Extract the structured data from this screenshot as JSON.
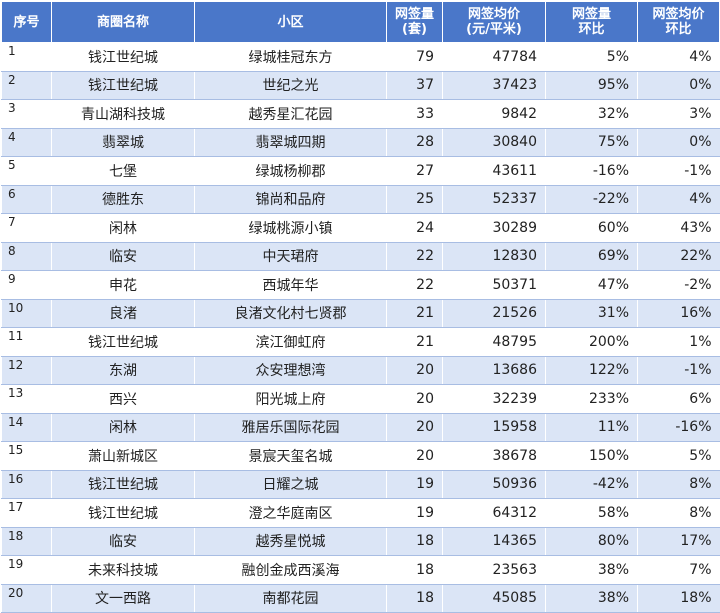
{
  "headers": {
    "index": "序号",
    "area": "商圈名称",
    "community": "小区",
    "deals": [
      "网签量",
      "(套)"
    ],
    "price": [
      "网签均价",
      "(元/平米)"
    ],
    "deals_mom": [
      "网签量",
      "环比"
    ],
    "price_mom": [
      "网签均价",
      "环比"
    ]
  },
  "rows": [
    {
      "index": "1",
      "area": "钱江世纪城",
      "community": "绿城桂冠东方",
      "deals": "79",
      "price": "47784",
      "deals_mom": "5%",
      "price_mom": "4%"
    },
    {
      "index": "2",
      "area": "钱江世纪城",
      "community": "世纪之光",
      "deals": "37",
      "price": "37423",
      "deals_mom": "95%",
      "price_mom": "0%"
    },
    {
      "index": "3",
      "area": "青山湖科技城",
      "community": "越秀星汇花园",
      "deals": "33",
      "price": "9842",
      "deals_mom": "32%",
      "price_mom": "3%"
    },
    {
      "index": "4",
      "area": "翡翠城",
      "community": "翡翠城四期",
      "deals": "28",
      "price": "30840",
      "deals_mom": "75%",
      "price_mom": "0%"
    },
    {
      "index": "5",
      "area": "七堡",
      "community": "绿城杨柳郡",
      "deals": "27",
      "price": "43611",
      "deals_mom": "-16%",
      "price_mom": "-1%"
    },
    {
      "index": "6",
      "area": "德胜东",
      "community": "锦尚和品府",
      "deals": "25",
      "price": "52337",
      "deals_mom": "-22%",
      "price_mom": "4%"
    },
    {
      "index": "7",
      "area": "闲林",
      "community": "绿城桃源小镇",
      "deals": "24",
      "price": "30289",
      "deals_mom": "60%",
      "price_mom": "43%"
    },
    {
      "index": "8",
      "area": "临安",
      "community": "中天珺府",
      "deals": "22",
      "price": "12830",
      "deals_mom": "69%",
      "price_mom": "22%"
    },
    {
      "index": "9",
      "area": "申花",
      "community": "西城年华",
      "deals": "22",
      "price": "50371",
      "deals_mom": "47%",
      "price_mom": "-2%"
    },
    {
      "index": "10",
      "area": "良渚",
      "community": "良渚文化村七贤郡",
      "deals": "21",
      "price": "21526",
      "deals_mom": "31%",
      "price_mom": "16%"
    },
    {
      "index": "11",
      "area": "钱江世纪城",
      "community": "滨江御虹府",
      "deals": "21",
      "price": "48795",
      "deals_mom": "200%",
      "price_mom": "1%"
    },
    {
      "index": "12",
      "area": "东湖",
      "community": "众安理想湾",
      "deals": "20",
      "price": "13686",
      "deals_mom": "122%",
      "price_mom": "-1%"
    },
    {
      "index": "13",
      "area": "西兴",
      "community": "阳光城上府",
      "deals": "20",
      "price": "32239",
      "deals_mom": "233%",
      "price_mom": "6%"
    },
    {
      "index": "14",
      "area": "闲林",
      "community": "雅居乐国际花园",
      "deals": "20",
      "price": "15958",
      "deals_mom": "11%",
      "price_mom": "-16%"
    },
    {
      "index": "15",
      "area": "萧山新城区",
      "community": "景宸天玺名城",
      "deals": "20",
      "price": "38678",
      "deals_mom": "150%",
      "price_mom": "5%"
    },
    {
      "index": "16",
      "area": "钱江世纪城",
      "community": "日耀之城",
      "deals": "19",
      "price": "50936",
      "deals_mom": "-42%",
      "price_mom": "8%"
    },
    {
      "index": "17",
      "area": "钱江世纪城",
      "community": "澄之华庭南区",
      "deals": "19",
      "price": "64312",
      "deals_mom": "58%",
      "price_mom": "8%"
    },
    {
      "index": "18",
      "area": "临安",
      "community": "越秀星悦城",
      "deals": "18",
      "price": "14365",
      "deals_mom": "80%",
      "price_mom": "17%"
    },
    {
      "index": "19",
      "area": "未来科技城",
      "community": "融创金成西溪海",
      "deals": "18",
      "price": "23563",
      "deals_mom": "38%",
      "price_mom": "7%"
    },
    {
      "index": "20",
      "area": "文一西路",
      "community": "南都花园",
      "deals": "18",
      "price": "45085",
      "deals_mom": "38%",
      "price_mom": "18%"
    }
  ]
}
